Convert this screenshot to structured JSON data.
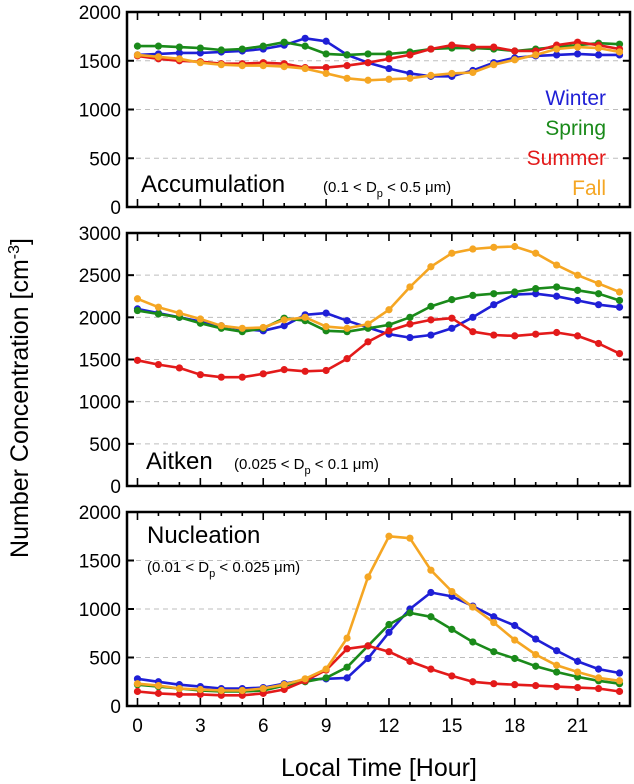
{
  "figure": {
    "ylabel_main": "Number Concentration [cm",
    "ylabel_sup": "-3",
    "ylabel_end": "]",
    "xlabel": "Local Time [Hour]"
  },
  "chart_data": [
    {
      "type": "line",
      "panel": "accumulation",
      "title": "Accumulation",
      "range": {
        "pre": "(0.1 < D",
        "sub": "p",
        "post": " < 0.5 μm)"
      },
      "x": [
        0,
        1,
        2,
        3,
        4,
        5,
        6,
        7,
        8,
        9,
        10,
        11,
        12,
        13,
        14,
        15,
        16,
        17,
        18,
        19,
        20,
        21,
        22,
        23
      ],
      "xlim": [
        -0.5,
        23.5
      ],
      "ylim": [
        0,
        2000
      ],
      "yticks": [
        0,
        500,
        1000,
        1500,
        2000
      ],
      "xticks": [
        0,
        3,
        6,
        9,
        12,
        15,
        18,
        21
      ],
      "grid": "horizontal-dashed",
      "legend_position": "bottom-right",
      "series": [
        {
          "name": "Winter",
          "color": "#1f1fd6",
          "values": [
            1560,
            1570,
            1580,
            1580,
            1590,
            1600,
            1620,
            1660,
            1730,
            1700,
            1560,
            1480,
            1420,
            1370,
            1340,
            1340,
            1400,
            1480,
            1530,
            1550,
            1560,
            1570,
            1560,
            1560
          ]
        },
        {
          "name": "Spring",
          "color": "#1a8a1a",
          "values": [
            1650,
            1650,
            1640,
            1630,
            1610,
            1620,
            1650,
            1690,
            1650,
            1570,
            1560,
            1570,
            1570,
            1590,
            1620,
            1630,
            1630,
            1620,
            1600,
            1620,
            1640,
            1660,
            1680,
            1670
          ]
        },
        {
          "name": "Summer",
          "color": "#e31a1a",
          "values": [
            1550,
            1520,
            1500,
            1490,
            1470,
            1470,
            1480,
            1470,
            1430,
            1430,
            1450,
            1480,
            1520,
            1560,
            1620,
            1660,
            1640,
            1640,
            1600,
            1600,
            1660,
            1690,
            1660,
            1620
          ]
        },
        {
          "name": "Fall",
          "color": "#f5a623",
          "values": [
            1560,
            1540,
            1520,
            1480,
            1460,
            1450,
            1450,
            1440,
            1420,
            1370,
            1320,
            1300,
            1310,
            1320,
            1350,
            1370,
            1380,
            1460,
            1510,
            1560,
            1620,
            1640,
            1630,
            1590
          ]
        }
      ]
    },
    {
      "type": "line",
      "panel": "aitken",
      "title": "Aitken",
      "range": {
        "pre": "(0.025 < D",
        "sub": "p",
        "post": " < 0.1 μm)"
      },
      "x": [
        0,
        1,
        2,
        3,
        4,
        5,
        6,
        7,
        8,
        9,
        10,
        11,
        12,
        13,
        14,
        15,
        16,
        17,
        18,
        19,
        20,
        21,
        22,
        23
      ],
      "xlim": [
        -0.5,
        23.5
      ],
      "ylim": [
        0,
        3000
      ],
      "yticks": [
        0,
        500,
        1000,
        1500,
        2000,
        2500,
        3000
      ],
      "xticks": [
        0,
        3,
        6,
        9,
        12,
        15,
        18,
        21
      ],
      "grid": "horizontal-dashed",
      "series": [
        {
          "name": "Winter",
          "color": "#1f1fd6",
          "values": [
            2100,
            2050,
            2000,
            1950,
            1900,
            1860,
            1840,
            1900,
            2030,
            2050,
            1960,
            1880,
            1800,
            1760,
            1790,
            1870,
            2000,
            2150,
            2270,
            2280,
            2250,
            2200,
            2150,
            2120
          ]
        },
        {
          "name": "Spring",
          "color": "#1a8a1a",
          "values": [
            2080,
            2040,
            2000,
            1930,
            1870,
            1830,
            1870,
            1990,
            1960,
            1840,
            1830,
            1870,
            1910,
            2000,
            2130,
            2210,
            2260,
            2280,
            2300,
            2340,
            2360,
            2320,
            2280,
            2200
          ]
        },
        {
          "name": "Summer",
          "color": "#e31a1a",
          "values": [
            1490,
            1440,
            1400,
            1320,
            1290,
            1290,
            1330,
            1380,
            1360,
            1370,
            1510,
            1710,
            1840,
            1920,
            1970,
            1990,
            1830,
            1790,
            1780,
            1800,
            1820,
            1780,
            1690,
            1570
          ]
        },
        {
          "name": "Fall",
          "color": "#f5a623",
          "values": [
            2220,
            2120,
            2050,
            1980,
            1900,
            1870,
            1880,
            1970,
            2000,
            1890,
            1870,
            1920,
            2090,
            2360,
            2600,
            2760,
            2810,
            2830,
            2840,
            2760,
            2620,
            2500,
            2400,
            2300
          ]
        }
      ]
    },
    {
      "type": "line",
      "panel": "nucleation",
      "title": "Nucleation",
      "range": {
        "pre": "(0.01 < D",
        "sub": "p",
        "post": " < 0.025 μm)"
      },
      "x": [
        0,
        1,
        2,
        3,
        4,
        5,
        6,
        7,
        8,
        9,
        10,
        11,
        12,
        13,
        14,
        15,
        16,
        17,
        18,
        19,
        20,
        21,
        22,
        23
      ],
      "xlim": [
        -0.5,
        23.5
      ],
      "ylim": [
        0,
        2000
      ],
      "yticks": [
        0,
        500,
        1000,
        1500,
        2000
      ],
      "xticks": [
        0,
        3,
        6,
        9,
        12,
        15,
        18,
        21
      ],
      "xticklabels": [
        "0",
        "3",
        "6",
        "9",
        "12",
        "15",
        "18",
        "21"
      ],
      "grid": "horizontal-dashed",
      "series": [
        {
          "name": "Winter",
          "color": "#1f1fd6",
          "values": [
            280,
            250,
            220,
            200,
            180,
            180,
            190,
            230,
            270,
            280,
            290,
            490,
            760,
            1000,
            1170,
            1130,
            1030,
            920,
            830,
            690,
            570,
            460,
            380,
            340
          ]
        },
        {
          "name": "Spring",
          "color": "#1a8a1a",
          "values": [
            220,
            200,
            180,
            160,
            150,
            150,
            160,
            210,
            250,
            290,
            400,
            620,
            840,
            960,
            920,
            790,
            660,
            560,
            490,
            410,
            350,
            300,
            260,
            230
          ]
        },
        {
          "name": "Summer",
          "color": "#e31a1a",
          "values": [
            150,
            130,
            120,
            120,
            110,
            110,
            130,
            170,
            260,
            370,
            590,
            620,
            560,
            460,
            380,
            310,
            250,
            230,
            220,
            210,
            200,
            190,
            180,
            150
          ]
        },
        {
          "name": "Fall",
          "color": "#f5a623",
          "values": [
            230,
            210,
            180,
            170,
            160,
            160,
            180,
            220,
            280,
            380,
            700,
            1330,
            1750,
            1730,
            1400,
            1180,
            1020,
            860,
            680,
            530,
            420,
            350,
            290,
            260
          ]
        }
      ]
    }
  ]
}
